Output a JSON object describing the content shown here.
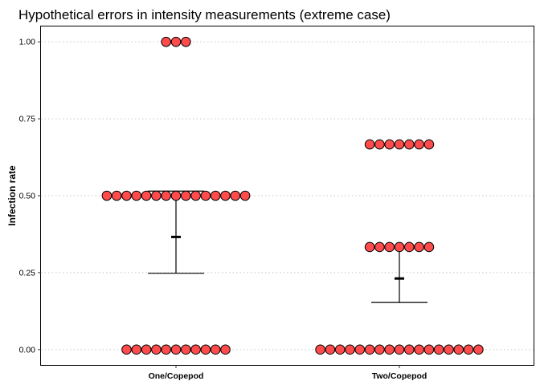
{
  "chart_data": {
    "type": "scatter",
    "title": "Hypothetical errors in intensity measurements (extreme case)",
    "xlabel": "",
    "ylabel": "Infection rate",
    "ylim": [
      -0.05,
      1.05
    ],
    "yticks": [
      "0.00",
      "0.25",
      "0.50",
      "0.75",
      "1.00"
    ],
    "grid": "horizontal dotted",
    "categories": [
      "One/Copepod",
      "Two/Copepod"
    ],
    "point_color": "#ff4b4b",
    "point_stroke": "#000000",
    "groups": [
      {
        "category": "One/Copepod",
        "points": [
          {
            "y": 1.0,
            "count": 3
          },
          {
            "y": 0.5,
            "count": 15
          },
          {
            "y": 0.0,
            "count": 11
          }
        ],
        "mean": 0.366,
        "error_low": 0.248,
        "error_high": 0.515
      },
      {
        "category": "Two/Copepod",
        "points": [
          {
            "y": 0.6667,
            "count": 7
          },
          {
            "y": 0.3333,
            "count": 7
          },
          {
            "y": 0.0,
            "count": 17
          }
        ],
        "mean": 0.231,
        "error_low": 0.153,
        "error_high": 0.333
      }
    ]
  }
}
